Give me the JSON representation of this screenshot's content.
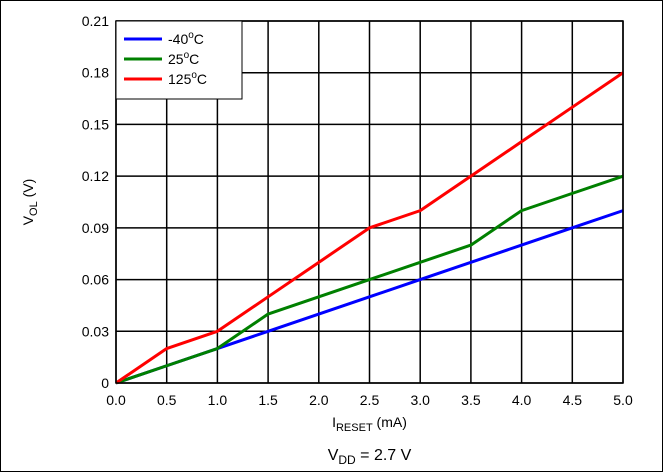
{
  "chart_data": {
    "type": "line",
    "x": [
      0.0,
      0.5,
      1.0,
      1.5,
      2.0,
      2.5,
      3.0,
      3.5,
      4.0,
      4.5,
      5.0
    ],
    "xlim": [
      0.0,
      5.0
    ],
    "ylim": [
      0,
      0.21
    ],
    "x_ticks": [
      "0.0",
      "0.5",
      "1.0",
      "1.5",
      "2.0",
      "2.5",
      "3.0",
      "3.5",
      "4.0",
      "4.5",
      "5.0"
    ],
    "y_ticks": [
      "0",
      "0.03",
      "0.06",
      "0.09",
      "0.12",
      "0.15",
      "0.18",
      "0.21"
    ],
    "xlabel": {
      "main": "I",
      "sub": "RESET",
      "unit": " (mA)"
    },
    "ylabel": {
      "main": "V",
      "sub": "OL",
      "unit": " (V)"
    },
    "grid": true,
    "legend_position": "top-left",
    "series": [
      {
        "name": "-40",
        "unit_sup": "o",
        "unit": "C",
        "color": "#0000ff",
        "values": [
          0.0,
          0.01,
          0.02,
          0.03,
          0.04,
          0.05,
          0.06,
          0.07,
          0.08,
          0.09,
          0.1
        ]
      },
      {
        "name": "25",
        "unit_sup": "o",
        "unit": "C",
        "color": "#008000",
        "values": [
          0.0,
          0.01,
          0.02,
          0.04,
          0.05,
          0.06,
          0.07,
          0.08,
          0.1,
          0.11,
          0.12
        ]
      },
      {
        "name": "125",
        "unit_sup": "o",
        "unit": "C",
        "color": "#ff0000",
        "values": [
          0.0,
          0.02,
          0.03,
          0.05,
          0.07,
          0.09,
          0.1,
          0.12,
          0.14,
          0.16,
          0.18
        ]
      }
    ],
    "caption": {
      "main": "V",
      "sub": "DD",
      "rest": " = 2.7 V"
    }
  }
}
